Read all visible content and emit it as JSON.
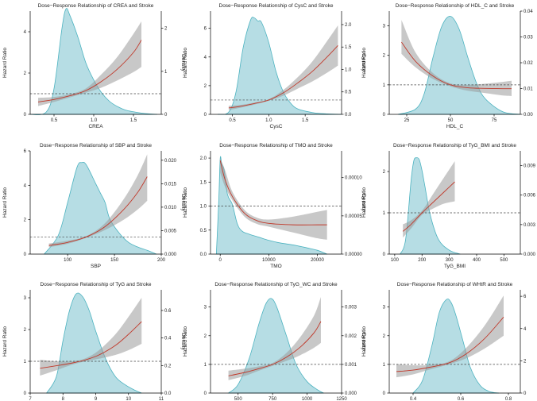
{
  "figure": {
    "description_hidden": ""
  },
  "chart_data": [
    {
      "type": "line",
      "title": "Dose−Response Relationship of CREA and Stroke",
      "xlabel": "CREA",
      "ylabel": "Hazard Ratio",
      "y2label": "Density",
      "xlim": [
        0.2,
        1.85
      ],
      "xticks": [
        0.5,
        1.0,
        1.5
      ],
      "xtick_labels": [
        "0.5",
        "1.0",
        "1.5"
      ],
      "ylim": [
        0,
        5
      ],
      "yticks": [
        0,
        2,
        4
      ],
      "ytick_labels": [
        "0",
        "2",
        "4"
      ],
      "y2lim": [
        0,
        2.4
      ],
      "y2ticks": [
        0,
        1,
        2
      ],
      "y2tick_labels": [
        "0",
        "1",
        "2"
      ],
      "reference_hr": 1,
      "hr_curve": {
        "x": [
          0.3,
          0.5,
          0.7,
          0.9,
          1.1,
          1.3,
          1.5,
          1.6
        ],
        "hr": [
          0.6,
          0.72,
          0.9,
          1.15,
          1.6,
          2.2,
          3.0,
          3.6
        ],
        "lower": [
          0.4,
          0.6,
          0.82,
          1.05,
          1.3,
          1.65,
          2.05,
          2.3
        ],
        "upper": [
          0.8,
          0.84,
          0.98,
          1.25,
          1.95,
          2.8,
          3.9,
          4.5
        ]
      },
      "density": {
        "x": [
          0.2,
          0.4,
          0.5,
          0.6,
          0.65,
          0.7,
          0.8,
          0.9,
          1.0,
          1.1,
          1.2,
          1.3,
          1.4,
          1.5,
          1.6,
          1.7,
          1.8
        ],
        "y": [
          0,
          0.05,
          0.6,
          2.0,
          2.45,
          2.3,
          1.8,
          1.2,
          0.8,
          0.5,
          0.3,
          0.18,
          0.1,
          0.06,
          0.03,
          0.01,
          0
        ]
      }
    },
    {
      "type": "line",
      "title": "Dose−Response Relationship of CysC and Stroke",
      "xlabel": "CysC",
      "ylabel": "Hazard Ratio",
      "y2label": "Density",
      "xlim": [
        0.2,
        2.0
      ],
      "xticks": [
        0.5,
        1.0,
        1.5
      ],
      "xtick_labels": [
        "0.5",
        "1.0",
        "1.5"
      ],
      "ylim": [
        0,
        7.2
      ],
      "yticks": [
        0,
        2,
        4,
        6
      ],
      "ytick_labels": [
        "0",
        "2",
        "4",
        "6"
      ],
      "y2lim": [
        0,
        2.3
      ],
      "y2ticks": [
        0,
        0.5,
        1.0,
        1.5,
        2.0
      ],
      "y2tick_labels": [
        "0.0",
        "0.5",
        "1.0",
        "1.5",
        "2.0"
      ],
      "reference_hr": 1,
      "hr_curve": {
        "x": [
          0.45,
          0.6,
          0.8,
          1.0,
          1.2,
          1.4,
          1.6,
          1.8,
          1.95
        ],
        "hr": [
          0.45,
          0.55,
          0.75,
          1.0,
          1.5,
          2.2,
          3.0,
          4.0,
          4.8
        ],
        "lower": [
          0.3,
          0.45,
          0.68,
          0.95,
          1.3,
          1.8,
          2.3,
          2.9,
          3.4
        ],
        "upper": [
          0.6,
          0.65,
          0.82,
          1.05,
          1.7,
          2.6,
          3.7,
          5.1,
          6.2
        ]
      },
      "density": {
        "x": [
          0.3,
          0.45,
          0.55,
          0.65,
          0.75,
          0.8,
          0.85,
          0.9,
          1.0,
          1.1,
          1.2,
          1.3,
          1.4,
          1.6,
          1.8,
          2.0
        ],
        "y": [
          0,
          0.05,
          0.5,
          1.5,
          2.1,
          2.15,
          2.08,
          2.05,
          1.6,
          0.95,
          0.5,
          0.25,
          0.12,
          0.04,
          0.01,
          0
        ]
      }
    },
    {
      "type": "line",
      "title": "Dose−Response Relationship of HDL_C and Stroke",
      "xlabel": "HDL_C",
      "ylabel": "Hazard Ratio",
      "y2label": "Density",
      "xlim": [
        15,
        90
      ],
      "xticks": [
        25,
        50,
        75
      ],
      "xtick_labels": [
        "25",
        "50",
        "75"
      ],
      "ylim": [
        0,
        3.5
      ],
      "yticks": [
        0,
        1,
        2,
        3
      ],
      "ytick_labels": [
        "0",
        "1",
        "2",
        "3"
      ],
      "y2lim": [
        0,
        0.04
      ],
      "y2ticks": [
        0,
        0.01,
        0.02,
        0.03,
        0.04
      ],
      "y2tick_labels": [
        "0.00",
        "0.01",
        "0.02",
        "0.03",
        "0.04"
      ],
      "reference_hr": 1,
      "hr_curve": {
        "x": [
          22,
          30,
          40,
          50,
          60,
          70,
          80,
          85
        ],
        "hr": [
          2.45,
          1.8,
          1.3,
          1.0,
          0.9,
          0.88,
          0.87,
          0.87
        ],
        "lower": [
          2.05,
          1.6,
          1.2,
          0.95,
          0.8,
          0.72,
          0.64,
          0.62
        ],
        "upper": [
          3.2,
          2.1,
          1.4,
          1.05,
          1.0,
          1.04,
          1.1,
          1.14
        ]
      },
      "density": {
        "x": [
          20,
          30,
          35,
          40,
          45,
          50,
          55,
          60,
          65,
          70,
          80,
          90
        ],
        "y": [
          0,
          0.002,
          0.008,
          0.022,
          0.034,
          0.038,
          0.033,
          0.022,
          0.012,
          0.006,
          0.001,
          0
        ]
      }
    },
    {
      "type": "line",
      "title": "Dose−Response Relationship of SBP and Stroke",
      "xlabel": "SBP",
      "ylabel": "Hazard Ratio",
      "y2label": "Density",
      "xlim": [
        60,
        200
      ],
      "xticks": [
        100,
        150,
        200
      ],
      "xtick_labels": [
        "100",
        "150",
        "200"
      ],
      "ylim": [
        0,
        6
      ],
      "yticks": [
        0,
        2,
        4,
        6
      ],
      "ytick_labels": [
        "0",
        "2",
        "4",
        "6"
      ],
      "y2lim": [
        0,
        0.022
      ],
      "y2ticks": [
        0,
        0.005,
        0.01,
        0.015,
        0.02
      ],
      "y2tick_labels": [
        "0.000",
        "0.005",
        "0.010",
        "0.015",
        "0.020"
      ],
      "reference_hr": 1,
      "hr_curve": {
        "x": [
          80,
          100,
          120,
          140,
          160,
          175,
          185
        ],
        "hr": [
          0.5,
          0.68,
          1.0,
          1.6,
          2.6,
          3.6,
          4.5
        ],
        "lower": [
          0.4,
          0.6,
          0.95,
          1.4,
          2.0,
          2.6,
          3.1
        ],
        "upper": [
          0.62,
          0.78,
          1.05,
          1.8,
          3.2,
          4.6,
          5.8
        ]
      },
      "density": {
        "x": [
          75,
          90,
          100,
          110,
          115,
          120,
          130,
          135,
          140,
          145,
          155,
          165,
          175,
          185,
          195
        ],
        "y": [
          0,
          0.004,
          0.011,
          0.0185,
          0.0195,
          0.019,
          0.015,
          0.013,
          0.011,
          0.0075,
          0.0045,
          0.0025,
          0.0015,
          0.0008,
          0
        ]
      }
    },
    {
      "type": "line",
      "title": "Dose−Response Relationship of TMO and Stroke",
      "xlabel": "TMO",
      "ylabel": "Hazard Ratio",
      "y2label": "Density",
      "xlim": [
        -2000,
        25000
      ],
      "xticks": [
        0,
        10000,
        20000
      ],
      "xtick_labels": [
        "0",
        "10000",
        "20000"
      ],
      "ylim": [
        0,
        2.15
      ],
      "yticks": [
        0,
        0.5,
        1.0,
        1.5,
        2.0
      ],
      "ytick_labels": [
        "0.0",
        "0.5",
        "1.0",
        "1.5",
        "2.0"
      ],
      "y2lim": [
        0,
        0.000135
      ],
      "y2ticks": [
        0,
        5e-05,
        0.0001
      ],
      "y2tick_labels": [
        "0.00000",
        "0.00005",
        "0.00010"
      ],
      "reference_hr": 1,
      "hr_curve": {
        "x": [
          0,
          1000,
          2500,
          5000,
          7500,
          10000,
          15000,
          20000,
          22000
        ],
        "hr": [
          1.95,
          1.55,
          1.2,
          0.85,
          0.7,
          0.64,
          0.61,
          0.61,
          0.61
        ],
        "lower": [
          1.7,
          1.4,
          1.12,
          0.78,
          0.63,
          0.57,
          0.45,
          0.33,
          0.3
        ],
        "upper": [
          2.0,
          1.75,
          1.3,
          0.92,
          0.76,
          0.72,
          0.78,
          0.88,
          0.92
        ]
      },
      "density": {
        "x": [
          -800,
          -300,
          0,
          300,
          800,
          1500,
          2500,
          3500,
          4500,
          6000,
          8000,
          10000,
          12000,
          15000,
          18000,
          20000,
          22000
        ],
        "y": [
          0,
          7e-05,
          0.000125,
          0.000118,
          0.00011,
          7.8e-05,
          6.5e-05,
          4e-05,
          3e-05,
          2.6e-05,
          2.2e-05,
          1.8e-05,
          1.5e-05,
          1.2e-05,
          8e-06,
          5e-06,
          0
        ]
      }
    },
    {
      "type": "line",
      "title": "Dose−Response Relationship of TyG_BMI and Stroke",
      "xlabel": "TyG_BMI",
      "ylabel": "Hazard Ratio",
      "y2label": "Density",
      "xlim": [
        80,
        560
      ],
      "xticks": [
        100,
        200,
        300,
        400,
        500
      ],
      "xtick_labels": [
        "100",
        "200",
        "300",
        "400",
        "500"
      ],
      "ylim": [
        0,
        2.5
      ],
      "yticks": [
        0,
        1,
        2
      ],
      "ytick_labels": [
        "0",
        "1",
        "2"
      ],
      "y2lim": [
        0,
        0.0105
      ],
      "y2ticks": [
        0,
        0.003,
        0.006,
        0.009
      ],
      "y2tick_labels": [
        "0.000",
        "0.003",
        "0.006",
        "0.009"
      ],
      "reference_hr": 1,
      "hr_curve": {
        "x": [
          130,
          160,
          200,
          240,
          280,
          320
        ],
        "hr": [
          0.55,
          0.72,
          1.0,
          1.25,
          1.5,
          1.75
        ],
        "lower": [
          0.4,
          0.62,
          0.95,
          1.1,
          1.22,
          1.28
        ],
        "upper": [
          0.72,
          0.82,
          1.05,
          1.45,
          1.85,
          2.25
        ]
      },
      "density": {
        "x": [
          120,
          140,
          160,
          170,
          180,
          190,
          200,
          210,
          230,
          260,
          300,
          340
        ],
        "y": [
          0,
          0.0015,
          0.0075,
          0.0095,
          0.0098,
          0.0096,
          0.0085,
          0.007,
          0.004,
          0.0015,
          0.0004,
          0
        ]
      }
    },
    {
      "type": "line",
      "title": "Dose−Response Relationship of TyG and Stroke",
      "xlabel": "TyG",
      "ylabel": "Hazard Ratio",
      "y2label": "Density",
      "xlim": [
        7,
        11
      ],
      "xticks": [
        7,
        8,
        9,
        10,
        11
      ],
      "xtick_labels": [
        "7",
        "8",
        "9",
        "10",
        "11"
      ],
      "ylim": [
        0,
        3.25
      ],
      "yticks": [
        0,
        1,
        2,
        3
      ],
      "ytick_labels": [
        "0",
        "1",
        "2",
        "3"
      ],
      "y2lim": [
        0,
        0.75
      ],
      "y2ticks": [
        0,
        0.2,
        0.4,
        0.6
      ],
      "y2tick_labels": [
        "0.0",
        "0.2",
        "0.4",
        "0.6"
      ],
      "reference_hr": 1,
      "hr_curve": {
        "x": [
          7.3,
          7.8,
          8.3,
          8.7,
          9.1,
          9.6,
          10.0,
          10.4
        ],
        "hr": [
          0.78,
          0.86,
          0.95,
          1.05,
          1.2,
          1.5,
          1.85,
          2.25
        ],
        "lower": [
          0.55,
          0.72,
          0.9,
          1.0,
          1.08,
          1.2,
          1.35,
          1.55
        ],
        "upper": [
          1.05,
          1.0,
          1.0,
          1.1,
          1.35,
          1.85,
          2.4,
          3.0
        ]
      },
      "density": {
        "x": [
          7.5,
          7.8,
          8.0,
          8.2,
          8.4,
          8.6,
          8.8,
          9.0,
          9.3,
          9.6,
          9.9,
          10.2,
          10.4
        ],
        "y": [
          0,
          0.12,
          0.38,
          0.6,
          0.72,
          0.7,
          0.6,
          0.45,
          0.25,
          0.12,
          0.06,
          0.02,
          0
        ]
      }
    },
    {
      "type": "line",
      "title": "Dose−Response Relationship of TyG_WC and Stroke",
      "xlabel": "TyG_WC",
      "ylabel": "Hazard Ratio",
      "y2label": "Density",
      "xlim": [
        300,
        1250
      ],
      "xticks": [
        500,
        750,
        1000,
        1250
      ],
      "xtick_labels": [
        "500",
        "750",
        "1000",
        "1250"
      ],
      "ylim": [
        0,
        3.6
      ],
      "yticks": [
        0,
        1,
        2,
        3
      ],
      "ytick_labels": [
        "0",
        "1",
        "2",
        "3"
      ],
      "y2lim": [
        0,
        0.0036
      ],
      "y2ticks": [
        0,
        0.001,
        0.002,
        0.003
      ],
      "y2tick_labels": [
        "0.000",
        "0.001",
        "0.002",
        "0.003"
      ],
      "reference_hr": 1,
      "hr_curve": {
        "x": [
          430,
          550,
          650,
          750,
          850,
          950,
          1050,
          1100
        ],
        "hr": [
          0.6,
          0.72,
          0.85,
          1.0,
          1.25,
          1.6,
          2.1,
          2.5
        ],
        "lower": [
          0.45,
          0.6,
          0.78,
          0.95,
          1.12,
          1.32,
          1.58,
          1.75
        ],
        "upper": [
          0.78,
          0.85,
          0.93,
          1.05,
          1.4,
          1.95,
          2.7,
          3.35
        ]
      },
      "density": {
        "x": [
          430,
          500,
          580,
          650,
          700,
          740,
          780,
          850,
          920,
          1000,
          1080,
          1120
        ],
        "y": [
          0,
          0.0003,
          0.0012,
          0.0024,
          0.0031,
          0.0033,
          0.003,
          0.002,
          0.001,
          0.0004,
          0.0001,
          0
        ]
      }
    },
    {
      "type": "line",
      "title": "Dose−Response Relationship of WHtR and Stroke",
      "xlabel": "WHtR",
      "ylabel": "Hazard Ratio",
      "y2label": "Density",
      "xlim": [
        0.3,
        0.85
      ],
      "xticks": [
        0.4,
        0.6,
        0.8
      ],
      "xtick_labels": [
        "0.4",
        "0.6",
        "0.8"
      ],
      "ylim": [
        0,
        3.6
      ],
      "yticks": [
        0,
        1,
        2,
        3
      ],
      "ytick_labels": [
        "0",
        "1",
        "2",
        "3"
      ],
      "y2lim": [
        0,
        6.4
      ],
      "y2ticks": [
        0,
        2,
        4,
        6
      ],
      "y2tick_labels": [
        "0",
        "2",
        "4",
        "6"
      ],
      "reference_hr": 1,
      "hr_curve": {
        "x": [
          0.33,
          0.4,
          0.47,
          0.55,
          0.62,
          0.7,
          0.78
        ],
        "hr": [
          0.75,
          0.8,
          0.9,
          1.05,
          1.35,
          1.9,
          2.65
        ],
        "lower": [
          0.55,
          0.65,
          0.82,
          1.0,
          1.2,
          1.55,
          2.0
        ],
        "upper": [
          1.0,
          0.97,
          0.98,
          1.1,
          1.55,
          2.35,
          3.4
        ]
      },
      "density": {
        "x": [
          0.4,
          0.44,
          0.48,
          0.51,
          0.54,
          0.56,
          0.58,
          0.61,
          0.64,
          0.68,
          0.72,
          0.76
        ],
        "y": [
          0,
          0.8,
          3.0,
          5.0,
          5.8,
          5.6,
          4.8,
          3.2,
          1.6,
          0.5,
          0.1,
          0
        ]
      }
    }
  ]
}
